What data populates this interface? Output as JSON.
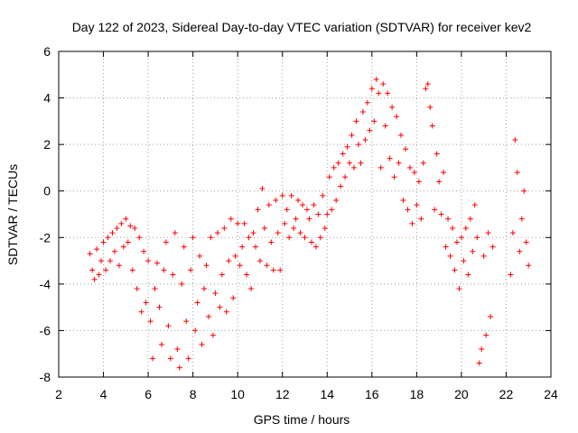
{
  "chart_data": {
    "type": "scatter",
    "title": "Day 122 of 2023, Sidereal Day-to-day VTEC variation (SDTVAR) for receiver kev2",
    "xlabel": "GPS time / hours",
    "ylabel": "SDTVAR / TECUs",
    "xlim": [
      2,
      24
    ],
    "ylim": [
      -8,
      6
    ],
    "xticks": [
      2,
      4,
      6,
      8,
      10,
      12,
      14,
      16,
      18,
      20,
      22,
      24
    ],
    "yticks": [
      -8,
      -6,
      -4,
      -2,
      0,
      2,
      4,
      6
    ],
    "grid": true,
    "marker": "+",
    "color": "#ff0000",
    "series": [
      {
        "name": "SDTVAR",
        "points": [
          [
            3.4,
            -2.7
          ],
          [
            3.5,
            -3.4
          ],
          [
            3.6,
            -3.8
          ],
          [
            3.7,
            -2.5
          ],
          [
            3.8,
            -3.6
          ],
          [
            3.9,
            -3.0
          ],
          [
            4.0,
            -2.2
          ],
          [
            4.1,
            -3.4
          ],
          [
            4.2,
            -2.0
          ],
          [
            4.3,
            -3.0
          ],
          [
            4.4,
            -1.8
          ],
          [
            4.5,
            -2.6
          ],
          [
            4.6,
            -1.6
          ],
          [
            4.7,
            -3.2
          ],
          [
            4.8,
            -1.4
          ],
          [
            4.9,
            -2.4
          ],
          [
            5.0,
            -1.2
          ],
          [
            5.1,
            -2.2
          ],
          [
            5.2,
            -1.5
          ],
          [
            5.3,
            -3.4
          ],
          [
            5.4,
            -1.6
          ],
          [
            5.5,
            -4.2
          ],
          [
            5.6,
            -2.0
          ],
          [
            5.7,
            -5.2
          ],
          [
            5.8,
            -2.6
          ],
          [
            5.9,
            -4.8
          ],
          [
            6.0,
            -3.0
          ],
          [
            6.1,
            -5.6
          ],
          [
            6.2,
            -7.2
          ],
          [
            6.3,
            -4.2
          ],
          [
            6.4,
            -3.1
          ],
          [
            6.5,
            -5.0
          ],
          [
            6.6,
            -6.6
          ],
          [
            6.7,
            -3.4
          ],
          [
            6.8,
            -2.2
          ],
          [
            6.9,
            -5.8
          ],
          [
            7.0,
            -7.2
          ],
          [
            7.1,
            -3.6
          ],
          [
            7.2,
            -1.8
          ],
          [
            7.3,
            -6.8
          ],
          [
            7.4,
            -7.6
          ],
          [
            7.5,
            -4.0
          ],
          [
            7.6,
            -2.4
          ],
          [
            7.7,
            -5.6
          ],
          [
            7.8,
            -7.2
          ],
          [
            7.9,
            -3.4
          ],
          [
            8.0,
            -2.0
          ],
          [
            8.1,
            -6.0
          ],
          [
            8.2,
            -4.8
          ],
          [
            8.3,
            -2.8
          ],
          [
            8.4,
            -6.6
          ],
          [
            8.5,
            -4.2
          ],
          [
            8.6,
            -3.2
          ],
          [
            8.7,
            -5.4
          ],
          [
            8.8,
            -2.0
          ],
          [
            8.9,
            -6.2
          ],
          [
            9.0,
            -4.4
          ],
          [
            9.1,
            -1.8
          ],
          [
            9.2,
            -5.0
          ],
          [
            9.3,
            -3.6
          ],
          [
            9.4,
            -1.6
          ],
          [
            9.5,
            -5.2
          ],
          [
            9.6,
            -3.0
          ],
          [
            9.7,
            -1.2
          ],
          [
            9.8,
            -4.6
          ],
          [
            9.9,
            -2.8
          ],
          [
            10.0,
            -1.4
          ],
          [
            10.1,
            -3.2
          ],
          [
            10.2,
            -2.4
          ],
          [
            10.3,
            -1.4
          ],
          [
            10.4,
            -3.6
          ],
          [
            10.5,
            -2.0
          ],
          [
            10.6,
            -4.2
          ],
          [
            10.7,
            -1.8
          ],
          [
            10.8,
            -2.4
          ],
          [
            10.9,
            -0.8
          ],
          [
            11.0,
            -3.0
          ],
          [
            11.1,
            0.1
          ],
          [
            11.2,
            -1.6
          ],
          [
            11.3,
            -3.2
          ],
          [
            11.4,
            -0.6
          ],
          [
            11.5,
            -2.2
          ],
          [
            11.6,
            -3.4
          ],
          [
            11.7,
            -0.4
          ],
          [
            11.8,
            -1.8
          ],
          [
            11.9,
            -3.4
          ],
          [
            12.0,
            -0.2
          ],
          [
            12.1,
            -1.4
          ],
          [
            12.2,
            -0.8
          ],
          [
            12.3,
            -2.0
          ],
          [
            12.4,
            -0.2
          ],
          [
            12.5,
            -1.6
          ],
          [
            12.6,
            -1.2
          ],
          [
            12.7,
            -0.4
          ],
          [
            12.8,
            -1.8
          ],
          [
            12.9,
            -0.6
          ],
          [
            13.0,
            -2.0
          ],
          [
            13.1,
            -0.8
          ],
          [
            13.2,
            -1.2
          ],
          [
            13.3,
            -2.2
          ],
          [
            13.4,
            -0.6
          ],
          [
            13.5,
            -2.4
          ],
          [
            13.6,
            -1.0
          ],
          [
            13.7,
            -2.0
          ],
          [
            13.8,
            -0.2
          ],
          [
            13.9,
            -1.6
          ],
          [
            14.0,
            -1.0
          ],
          [
            14.1,
            0.6
          ],
          [
            14.2,
            -0.8
          ],
          [
            14.3,
            1.0
          ],
          [
            14.4,
            -0.4
          ],
          [
            14.5,
            1.2
          ],
          [
            14.6,
            0.2
          ],
          [
            14.7,
            1.6
          ],
          [
            14.8,
            0.6
          ],
          [
            14.9,
            1.9
          ],
          [
            15.0,
            1.2
          ],
          [
            15.1,
            2.4
          ],
          [
            15.2,
            1.0
          ],
          [
            15.3,
            3.0
          ],
          [
            15.4,
            2.0
          ],
          [
            15.5,
            1.2
          ],
          [
            15.6,
            3.4
          ],
          [
            15.7,
            2.2
          ],
          [
            15.8,
            3.8
          ],
          [
            15.9,
            2.6
          ],
          [
            16.0,
            4.4
          ],
          [
            16.1,
            3.0
          ],
          [
            16.2,
            4.8
          ],
          [
            16.3,
            4.2
          ],
          [
            16.4,
            1.0
          ],
          [
            16.5,
            4.6
          ],
          [
            16.6,
            2.8
          ],
          [
            16.7,
            4.2
          ],
          [
            16.8,
            1.4
          ],
          [
            16.9,
            3.6
          ],
          [
            17.0,
            0.6
          ],
          [
            17.1,
            3.2
          ],
          [
            17.2,
            1.2
          ],
          [
            17.3,
            2.4
          ],
          [
            17.4,
            -0.4
          ],
          [
            17.5,
            1.8
          ],
          [
            17.6,
            -0.8
          ],
          [
            17.7,
            1.0
          ],
          [
            17.8,
            -1.4
          ],
          [
            17.9,
            0.8
          ],
          [
            18.0,
            -0.6
          ],
          [
            18.1,
            0.4
          ],
          [
            18.2,
            -1.2
          ],
          [
            18.3,
            1.2
          ],
          [
            18.4,
            4.4
          ],
          [
            18.5,
            4.6
          ],
          [
            18.6,
            3.6
          ],
          [
            18.7,
            2.8
          ],
          [
            18.8,
            -0.8
          ],
          [
            18.9,
            1.6
          ],
          [
            19.0,
            0.4
          ],
          [
            19.1,
            -1.0
          ],
          [
            19.2,
            0.8
          ],
          [
            19.3,
            -2.4
          ],
          [
            19.4,
            -1.2
          ],
          [
            19.5,
            -2.8
          ],
          [
            19.6,
            -1.6
          ],
          [
            19.7,
            -3.4
          ],
          [
            19.8,
            -2.2
          ],
          [
            19.9,
            -4.2
          ],
          [
            20.0,
            -2.0
          ],
          [
            20.1,
            -3.0
          ],
          [
            20.2,
            -1.6
          ],
          [
            20.3,
            -3.6
          ],
          [
            20.4,
            -1.2
          ],
          [
            20.5,
            -2.6
          ],
          [
            20.6,
            -0.6
          ],
          [
            20.7,
            -2.0
          ],
          [
            20.8,
            -7.4
          ],
          [
            20.9,
            -6.8
          ],
          [
            21.0,
            -2.8
          ],
          [
            21.1,
            -6.2
          ],
          [
            21.2,
            -1.8
          ],
          [
            21.3,
            -5.4
          ],
          [
            21.4,
            -2.4
          ],
          [
            22.2,
            -3.6
          ],
          [
            22.3,
            -1.8
          ],
          [
            22.4,
            2.2
          ],
          [
            22.5,
            0.8
          ],
          [
            22.6,
            -2.6
          ],
          [
            22.7,
            -1.2
          ],
          [
            22.8,
            0.0
          ],
          [
            22.9,
            -2.2
          ],
          [
            23.0,
            -3.2
          ]
        ]
      }
    ]
  }
}
